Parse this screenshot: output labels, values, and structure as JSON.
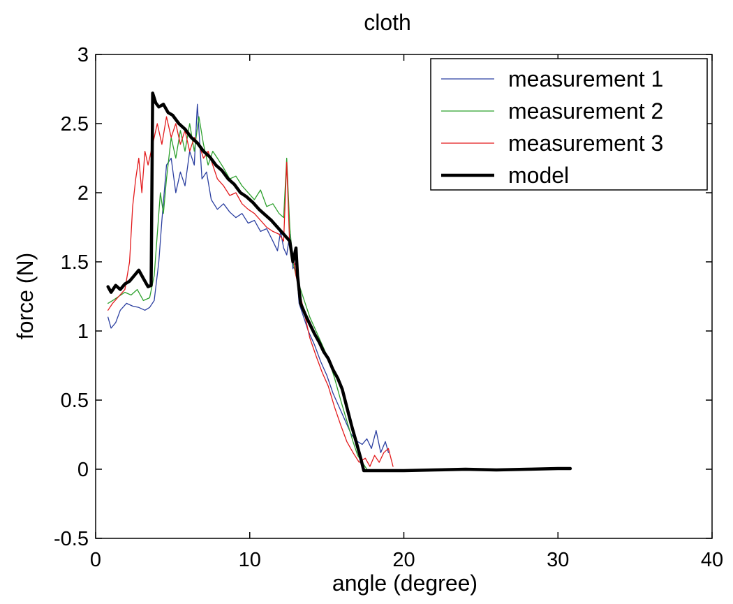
{
  "chart_data": {
    "type": "line",
    "title": "cloth",
    "xlabel": "angle (degree)",
    "ylabel": "force (N)",
    "xlim": [
      0,
      40
    ],
    "ylim": [
      -0.5,
      3
    ],
    "xticks": [
      0,
      10,
      20,
      30,
      40
    ],
    "yticks": [
      -0.5,
      0,
      0.5,
      1,
      1.5,
      2,
      2.5,
      3
    ],
    "xtick_labels": [
      "0",
      "10",
      "20",
      "30",
      "40"
    ],
    "ytick_labels": [
      "-0.5",
      "0",
      "0.5",
      "1",
      "1.5",
      "2",
      "2.5",
      "3"
    ],
    "grid": false,
    "legend": "top-right",
    "series": [
      {
        "name": "measurement 1",
        "color": "#2b3fa0",
        "style": "thin",
        "points": [
          [
            0.8,
            1.1
          ],
          [
            1.0,
            1.02
          ],
          [
            1.3,
            1.06
          ],
          [
            1.6,
            1.15
          ],
          [
            2.0,
            1.2
          ],
          [
            2.4,
            1.18
          ],
          [
            2.8,
            1.17
          ],
          [
            3.2,
            1.15
          ],
          [
            3.5,
            1.17
          ],
          [
            3.8,
            1.22
          ],
          [
            4.1,
            1.5
          ],
          [
            4.3,
            1.8
          ],
          [
            4.6,
            2.2
          ],
          [
            4.9,
            2.25
          ],
          [
            5.2,
            2.0
          ],
          [
            5.5,
            2.15
          ],
          [
            5.8,
            2.05
          ],
          [
            6.1,
            2.3
          ],
          [
            6.4,
            2.2
          ],
          [
            6.6,
            2.64
          ],
          [
            6.9,
            2.1
          ],
          [
            7.2,
            2.15
          ],
          [
            7.5,
            1.95
          ],
          [
            7.9,
            1.88
          ],
          [
            8.3,
            1.92
          ],
          [
            8.7,
            1.86
          ],
          [
            9.1,
            1.82
          ],
          [
            9.5,
            1.85
          ],
          [
            9.9,
            1.78
          ],
          [
            10.3,
            1.8
          ],
          [
            10.7,
            1.72
          ],
          [
            11.1,
            1.74
          ],
          [
            11.5,
            1.65
          ],
          [
            11.8,
            1.58
          ],
          [
            12.0,
            1.72
          ],
          [
            12.2,
            1.6
          ],
          [
            12.4,
            1.55
          ],
          [
            12.6,
            1.7
          ],
          [
            12.8,
            1.45
          ],
          [
            13.0,
            1.5
          ],
          [
            13.2,
            1.2
          ],
          [
            13.5,
            1.1
          ],
          [
            13.8,
            1.0
          ],
          [
            14.2,
            0.9
          ],
          [
            14.6,
            0.78
          ],
          [
            15.0,
            0.68
          ],
          [
            15.4,
            0.55
          ],
          [
            15.8,
            0.45
          ],
          [
            16.2,
            0.35
          ],
          [
            16.6,
            0.25
          ],
          [
            17.0,
            0.2
          ],
          [
            17.3,
            0.18
          ],
          [
            17.6,
            0.22
          ],
          [
            17.9,
            0.15
          ],
          [
            18.2,
            0.28
          ],
          [
            18.5,
            0.12
          ],
          [
            18.8,
            0.2
          ],
          [
            19.0,
            0.12
          ]
        ]
      },
      {
        "name": "measurement 2",
        "color": "#2ca02c",
        "style": "thin",
        "points": [
          [
            0.8,
            1.2
          ],
          [
            1.1,
            1.22
          ],
          [
            1.5,
            1.25
          ],
          [
            1.9,
            1.28
          ],
          [
            2.3,
            1.26
          ],
          [
            2.7,
            1.3
          ],
          [
            3.1,
            1.22
          ],
          [
            3.5,
            1.24
          ],
          [
            3.8,
            1.4
          ],
          [
            4.0,
            1.7
          ],
          [
            4.2,
            2.0
          ],
          [
            4.4,
            1.85
          ],
          [
            4.6,
            2.1
          ],
          [
            4.9,
            2.4
          ],
          [
            5.2,
            2.25
          ],
          [
            5.5,
            2.45
          ],
          [
            5.8,
            2.3
          ],
          [
            6.1,
            2.5
          ],
          [
            6.4,
            2.3
          ],
          [
            6.7,
            2.55
          ],
          [
            7.0,
            2.35
          ],
          [
            7.3,
            2.2
          ],
          [
            7.6,
            2.3
          ],
          [
            7.9,
            2.25
          ],
          [
            8.3,
            2.18
          ],
          [
            8.7,
            2.1
          ],
          [
            9.1,
            2.12
          ],
          [
            9.5,
            2.05
          ],
          [
            9.9,
            2.0
          ],
          [
            10.3,
            1.95
          ],
          [
            10.7,
            2.02
          ],
          [
            11.1,
            1.9
          ],
          [
            11.5,
            1.92
          ],
          [
            11.9,
            1.85
          ],
          [
            12.2,
            1.82
          ],
          [
            12.4,
            2.25
          ],
          [
            12.6,
            1.75
          ],
          [
            12.8,
            1.5
          ],
          [
            13.0,
            1.4
          ],
          [
            13.3,
            1.3
          ],
          [
            13.6,
            1.2
          ],
          [
            13.9,
            1.1
          ],
          [
            14.3,
            1.0
          ],
          [
            14.7,
            0.9
          ],
          [
            15.1,
            0.8
          ],
          [
            15.5,
            0.66
          ],
          [
            15.9,
            0.5
          ],
          [
            16.3,
            0.35
          ],
          [
            16.7,
            0.2
          ],
          [
            17.0,
            0.1
          ],
          [
            17.3,
            0.05
          ],
          [
            17.6,
            0.0
          ]
        ]
      },
      {
        "name": "measurement 3",
        "color": "#e31a1c",
        "style": "thin",
        "points": [
          [
            0.8,
            1.15
          ],
          [
            1.1,
            1.2
          ],
          [
            1.5,
            1.25
          ],
          [
            1.9,
            1.3
          ],
          [
            2.2,
            1.5
          ],
          [
            2.4,
            1.9
          ],
          [
            2.6,
            2.1
          ],
          [
            2.8,
            2.25
          ],
          [
            3.0,
            2.0
          ],
          [
            3.2,
            2.3
          ],
          [
            3.4,
            2.2
          ],
          [
            3.7,
            2.35
          ],
          [
            4.0,
            2.5
          ],
          [
            4.3,
            2.35
          ],
          [
            4.6,
            2.55
          ],
          [
            4.9,
            2.4
          ],
          [
            5.2,
            2.5
          ],
          [
            5.5,
            2.35
          ],
          [
            5.8,
            2.45
          ],
          [
            6.1,
            2.3
          ],
          [
            6.4,
            2.4
          ],
          [
            6.7,
            2.35
          ],
          [
            7.0,
            2.25
          ],
          [
            7.3,
            2.3
          ],
          [
            7.6,
            2.2
          ],
          [
            7.9,
            2.1
          ],
          [
            8.3,
            2.05
          ],
          [
            8.7,
            1.98
          ],
          [
            9.1,
            2.0
          ],
          [
            9.5,
            1.92
          ],
          [
            9.9,
            1.88
          ],
          [
            10.3,
            1.85
          ],
          [
            10.7,
            1.8
          ],
          [
            11.1,
            1.75
          ],
          [
            11.5,
            1.72
          ],
          [
            11.9,
            1.7
          ],
          [
            12.2,
            1.65
          ],
          [
            12.4,
            2.22
          ],
          [
            12.6,
            1.6
          ],
          [
            12.8,
            1.55
          ],
          [
            13.0,
            1.4
          ],
          [
            13.3,
            1.25
          ],
          [
            13.6,
            1.1
          ],
          [
            13.9,
            0.95
          ],
          [
            14.3,
            0.82
          ],
          [
            14.7,
            0.7
          ],
          [
            15.1,
            0.6
          ],
          [
            15.5,
            0.45
          ],
          [
            15.9,
            0.32
          ],
          [
            16.3,
            0.2
          ],
          [
            16.7,
            0.12
          ],
          [
            17.1,
            0.05
          ],
          [
            17.5,
            0.08
          ],
          [
            17.8,
            0.02
          ],
          [
            18.1,
            0.1
          ],
          [
            18.4,
            0.05
          ],
          [
            18.7,
            0.12
          ],
          [
            19.0,
            0.15
          ],
          [
            19.3,
            0.02
          ]
        ]
      },
      {
        "name": "model",
        "color": "#000000",
        "style": "thick",
        "points": [
          [
            0.8,
            1.32
          ],
          [
            1.0,
            1.28
          ],
          [
            1.3,
            1.33
          ],
          [
            1.6,
            1.3
          ],
          [
            1.9,
            1.34
          ],
          [
            2.2,
            1.36
          ],
          [
            2.5,
            1.4
          ],
          [
            2.8,
            1.44
          ],
          [
            3.1,
            1.38
          ],
          [
            3.4,
            1.32
          ],
          [
            3.6,
            1.33
          ],
          [
            3.7,
            2.72
          ],
          [
            3.9,
            2.65
          ],
          [
            4.1,
            2.62
          ],
          [
            4.4,
            2.64
          ],
          [
            4.7,
            2.58
          ],
          [
            5.0,
            2.56
          ],
          [
            5.4,
            2.5
          ],
          [
            5.8,
            2.46
          ],
          [
            6.2,
            2.4
          ],
          [
            6.6,
            2.36
          ],
          [
            7.0,
            2.3
          ],
          [
            7.4,
            2.26
          ],
          [
            7.8,
            2.2
          ],
          [
            8.2,
            2.16
          ],
          [
            8.6,
            2.1
          ],
          [
            9.0,
            2.06
          ],
          [
            9.4,
            2.0
          ],
          [
            9.8,
            1.97
          ],
          [
            10.2,
            1.93
          ],
          [
            10.6,
            1.88
          ],
          [
            11.0,
            1.84
          ],
          [
            11.4,
            1.8
          ],
          [
            11.8,
            1.75
          ],
          [
            12.2,
            1.7
          ],
          [
            12.6,
            1.65
          ],
          [
            12.8,
            1.5
          ],
          [
            13.0,
            1.6
          ],
          [
            13.1,
            1.4
          ],
          [
            13.3,
            1.2
          ],
          [
            13.6,
            1.12
          ],
          [
            13.9,
            1.05
          ],
          [
            14.2,
            0.98
          ],
          [
            14.5,
            0.92
          ],
          [
            14.8,
            0.85
          ],
          [
            15.1,
            0.8
          ],
          [
            15.4,
            0.72
          ],
          [
            15.7,
            0.66
          ],
          [
            16.0,
            0.58
          ],
          [
            16.3,
            0.45
          ],
          [
            16.6,
            0.32
          ],
          [
            16.9,
            0.2
          ],
          [
            17.2,
            0.08
          ],
          [
            17.4,
            -0.01
          ],
          [
            18.0,
            -0.01
          ],
          [
            20.0,
            -0.01
          ],
          [
            22.0,
            -0.005
          ],
          [
            24.0,
            0.0
          ],
          [
            26.0,
            -0.005
          ],
          [
            28.0,
            0.0
          ],
          [
            30.0,
            0.005
          ],
          [
            30.8,
            0.005
          ]
        ]
      }
    ]
  }
}
